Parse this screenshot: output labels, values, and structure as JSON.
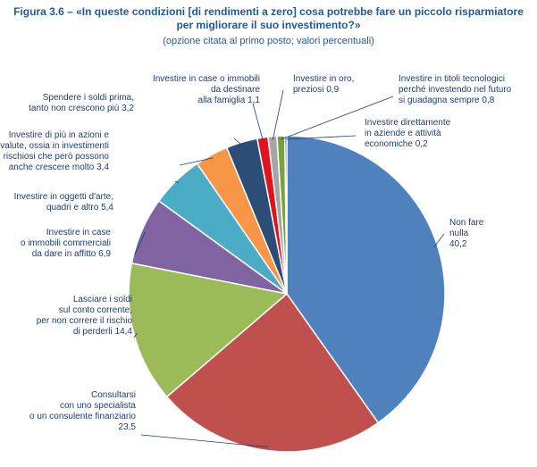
{
  "figure": {
    "title_line1": "Figura 3.6 – «In queste condizioni [di rendimenti a zero] cosa potrebbe fare un piccolo risparmiatore",
    "title_line2": "per migliorare il suo investimento?»",
    "subtitle": "(opzione citata al primo posto; valori percentuali)"
  },
  "chart_data": {
    "type": "pie",
    "start": "12 o'clock",
    "direction": "clockwise",
    "slices": [
      {
        "label": "Non fare nulla",
        "value": 40.2,
        "color": "#4f81bd",
        "label_lines": [
          "Non fare",
          "nulla",
          "40,2"
        ]
      },
      {
        "label": "Consultarsi con uno specialista o un consulente finanziario",
        "value": 23.5,
        "color": "#c0504d",
        "label_lines": [
          "Consultarsi",
          "con uno specialista",
          "o un consulente finanziario",
          "23,5"
        ]
      },
      {
        "label": "Lasciare i soldi sul conto corrente, per non correre il rischio di perderli",
        "value": 14.4,
        "color": "#9bbb59",
        "label_lines": [
          "Lasciare i soldi",
          "sul conto corrente,",
          "per non correre il rischio",
          "di perderli 14,4"
        ]
      },
      {
        "label": "Investire in case o immobili commerciali da dare in affitto",
        "value": 6.9,
        "color": "#8064a2",
        "label_lines": [
          "Investire in case",
          "o immobili commerciali",
          "da dare in affitto 6,9"
        ]
      },
      {
        "label": "Investire in oggetti d'arte, quadri e altro",
        "value": 5.4,
        "color": "#4bacc6",
        "label_lines": [
          "Investire in oggetti d'arte,",
          "quadri e altro 5,4"
        ]
      },
      {
        "label": "Investire di più in azioni e valute, ossia in investimenti rischiosi che però possono anche crescere molto",
        "value": 3.4,
        "color": "#f79646",
        "label_lines": [
          "Investire di più in azioni e",
          "valute, ossia in investimenti",
          "rischiosi che però possono",
          "anche crescere molto 3,4"
        ]
      },
      {
        "label": "Spendere i soldi prima, tanto non crescono più",
        "value": 3.2,
        "color": "#2c4d75",
        "label_lines": [
          "Spendere i soldi prima,",
          "tanto non crescono più 3,2"
        ]
      },
      {
        "label": "Investire in case o immobili da destinare alla famiglia",
        "value": 1.1,
        "color": "#e0141e",
        "label_lines": [
          "Investire in case o immobili",
          "da destinare",
          "alla famiglia 1,1"
        ]
      },
      {
        "label": "Investire in oro, preziosi",
        "value": 0.9,
        "color": "#a5a5a5",
        "label_lines": [
          "Investire in oro,",
          "preziosi 0,9"
        ]
      },
      {
        "label": "Investire in titoli tecnologici perché investendo nel futuro si guadagna sempre",
        "value": 0.8,
        "color": "#77a33a",
        "label_lines": [
          "Investire in titoli tecnologici",
          "perché investendo nel futuro",
          "si guadagna sempre 0,8"
        ]
      },
      {
        "label": "Investire direttamente in aziende e attività economiche",
        "value": 0.2,
        "color": "#1f3f6e",
        "label_lines": [
          "Investire direttamente",
          "in aziende e attività",
          "economiche 0,2"
        ]
      }
    ]
  }
}
